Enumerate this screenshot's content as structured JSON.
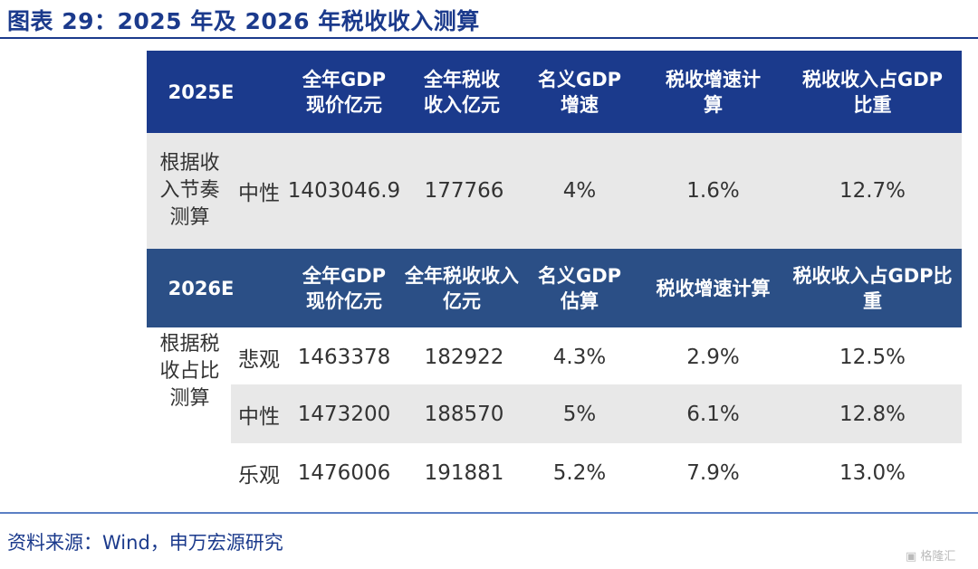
{
  "title": "图表 29：2025 年及 2026 年税收收入测算",
  "table_2025": {
    "headers": [
      "2025E",
      "全年GDP\n现价亿元",
      "全年税收\n收入亿元",
      "名义GDP\n增速",
      "税收增速计\n算",
      "税收收入占GDP\n比重"
    ],
    "group_label": "根据收\n入节奏\n测算",
    "rows": [
      {
        "scenario": "中性",
        "gdp": "1403046.9",
        "tax": "177766",
        "gdp_growth": "4%",
        "tax_growth": "1.6%",
        "ratio": "12.7%"
      }
    ]
  },
  "table_2026": {
    "headers": [
      "2026E",
      "全年GDP\n现价亿元",
      "全年税收收入\n亿元",
      "名义GDP\n估算",
      "税收增速计算",
      "税收收入占GDP比\n重"
    ],
    "group_label": "根据税\n收占比\n测算",
    "rows": [
      {
        "scenario": "悲观",
        "gdp": "1463378",
        "tax": "182922",
        "gdp_growth": "4.3%",
        "tax_growth": "2.9%",
        "ratio": "12.5%"
      },
      {
        "scenario": "中性",
        "gdp": "1473200",
        "tax": "188570",
        "gdp_growth": "5%",
        "tax_growth": "6.1%",
        "ratio": "12.8%"
      },
      {
        "scenario": "乐观",
        "gdp": "1476006",
        "tax": "191881",
        "gdp_growth": "5.2%",
        "tax_growth": "7.9%",
        "ratio": "13.0%"
      }
    ]
  },
  "source": "资料来源：Wind，申万宏源研究",
  "watermark": "格隆汇",
  "colors": {
    "title": "#1b3a8c",
    "header_2025": "#1b3a8c",
    "header_2026": "#2b4f86",
    "band": "#e8e8e8"
  }
}
